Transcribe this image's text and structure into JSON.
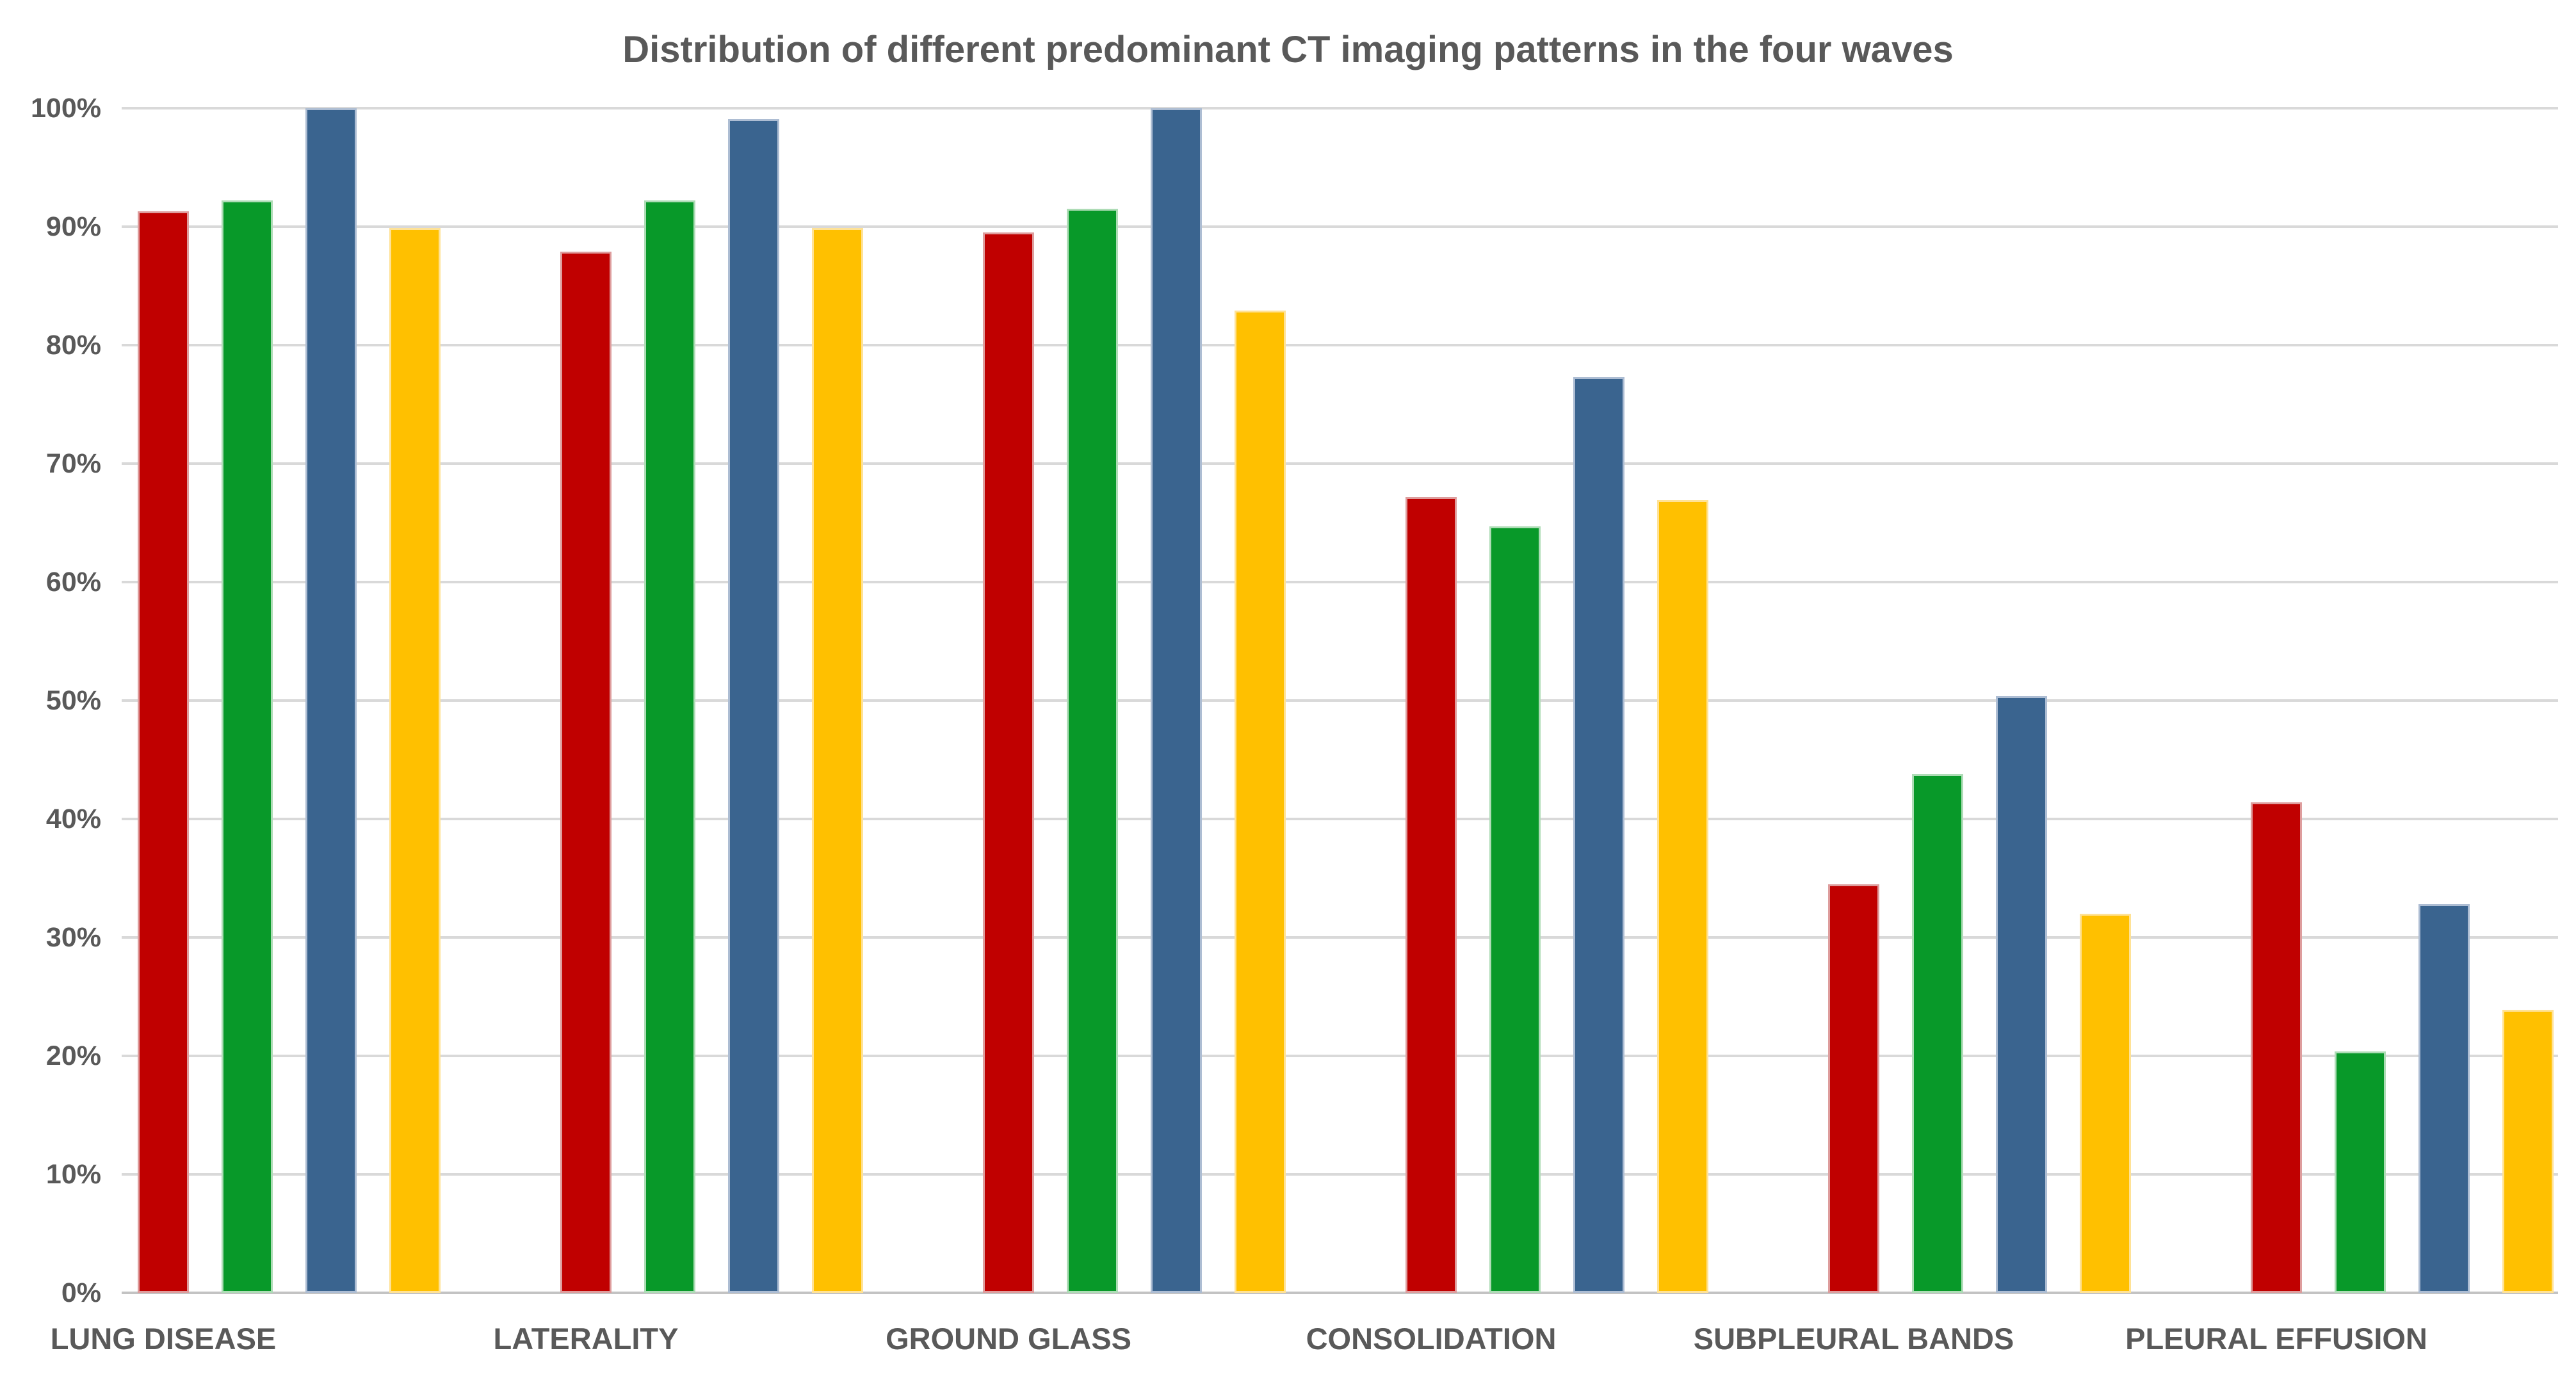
{
  "chart_data": {
    "type": "bar",
    "title": "Distribution of different predominant CT imaging patterns in the four waves",
    "categories": [
      "LUNG DISEASE",
      "LATERALITY",
      "GROUND GLASS",
      "CONSOLIDATION",
      "SUBPLEURAL BANDS",
      "PLEURAL EFFUSION"
    ],
    "series": [
      {
        "name": "red",
        "color": "#C00000",
        "edge_color": "#DE9D9D",
        "values": [
          91.3,
          87.9,
          89.5,
          67.2,
          34.5,
          41.4
        ]
      },
      {
        "name": "green",
        "color": "#089929",
        "edge_color": "#AEDCB6",
        "values": [
          92.2,
          92.2,
          91.5,
          64.7,
          43.8,
          20.4
        ]
      },
      {
        "name": "blue",
        "color": "#3A648F",
        "edge_color": "#ADBDD3",
        "values": [
          100.0,
          99.1,
          100.0,
          77.3,
          50.4,
          32.8
        ]
      },
      {
        "name": "yellow",
        "color": "#FFC000",
        "edge_color": "#FFE296",
        "values": [
          89.9,
          89.9,
          82.9,
          66.9,
          32.0,
          23.9
        ]
      }
    ],
    "xlabel": "",
    "ylabel": "",
    "ylim": [
      0,
      100
    ],
    "ytick_step": 10,
    "ytick_labels": [
      "0%",
      "10%",
      "20%",
      "30%",
      "40%",
      "50%",
      "60%",
      "70%",
      "80%",
      "90%",
      "100%"
    ],
    "grid": "horizontal",
    "legend": "none",
    "text_color": "#595959",
    "gridline_color": "#D9D9D9",
    "axisline_color": "#C3C3C3",
    "background_color": "#FFFFFF"
  }
}
